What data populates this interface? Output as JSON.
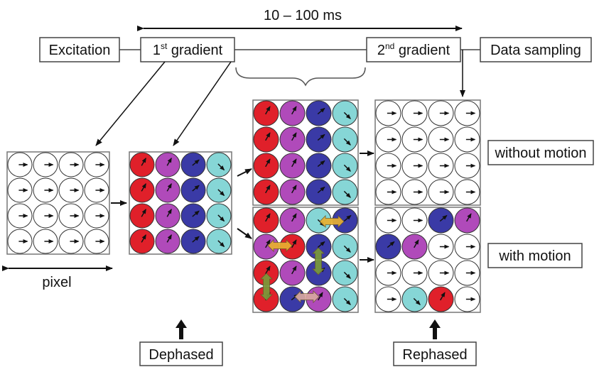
{
  "timing": {
    "label": "10 – 100 ms"
  },
  "sequence": {
    "excitation": "Excitation",
    "gradient1": {
      "number": "1",
      "suffix": "st",
      "word": " gradient"
    },
    "gradient2": {
      "number": "2",
      "suffix": "nd",
      "word": " gradient"
    },
    "data_sampling": "Data sampling"
  },
  "labels": {
    "without_motion": "without motion",
    "with_motion": "with motion",
    "pixel": "pixel",
    "dephased": "Dephased",
    "rephased": "Rephased"
  },
  "colors": {
    "red": "#e0202a",
    "magenta": "#b04aba",
    "blue": "#3a3aa6",
    "cyan": "#86d6d6",
    "white": "#ffffff",
    "motion_arrow": "#e8b030",
    "motion_arrow_green": "#7a9a3a"
  }
}
